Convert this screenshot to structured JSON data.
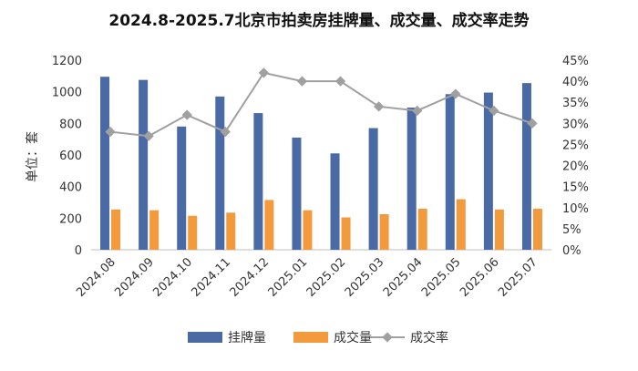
{
  "chart_data": {
    "type": "bar",
    "title": "2024.8-2025.7北京市拍卖房挂牌量、成交量、成交率走势",
    "ylabel": "单位：套",
    "categories": [
      "2024.08",
      "2024.09",
      "2024.10",
      "2024.11",
      "2024.12",
      "2025.01",
      "2025.02",
      "2025.03",
      "2025.04",
      "2025.05",
      "2025.06",
      "2025.07"
    ],
    "ylim": [
      0,
      1200
    ],
    "y_ticks": [
      "0",
      "200",
      "400",
      "600",
      "800",
      "1000",
      "1200"
    ],
    "y2lim": [
      0,
      45
    ],
    "y2_ticks": [
      "0%",
      "5%",
      "10%",
      "15%",
      "20%",
      "25%",
      "30%",
      "35%",
      "40%",
      "45%"
    ],
    "series": [
      {
        "name": "挂牌量",
        "type": "bar",
        "axis": "left",
        "color": "#4a6aa5",
        "values": [
          1095,
          1075,
          780,
          970,
          865,
          710,
          610,
          770,
          900,
          985,
          995,
          1055
        ]
      },
      {
        "name": "成交量",
        "type": "bar",
        "axis": "left",
        "color": "#f39a3c",
        "values": [
          255,
          250,
          215,
          235,
          315,
          250,
          205,
          225,
          260,
          320,
          255,
          260
        ]
      },
      {
        "name": "成交率",
        "type": "line",
        "axis": "right",
        "color": "#a0a0a0",
        "values": [
          28,
          27,
          32,
          28,
          42,
          40,
          40,
          34,
          33,
          37,
          33,
          30
        ]
      }
    ],
    "legend_position": "bottom",
    "grid": false
  }
}
